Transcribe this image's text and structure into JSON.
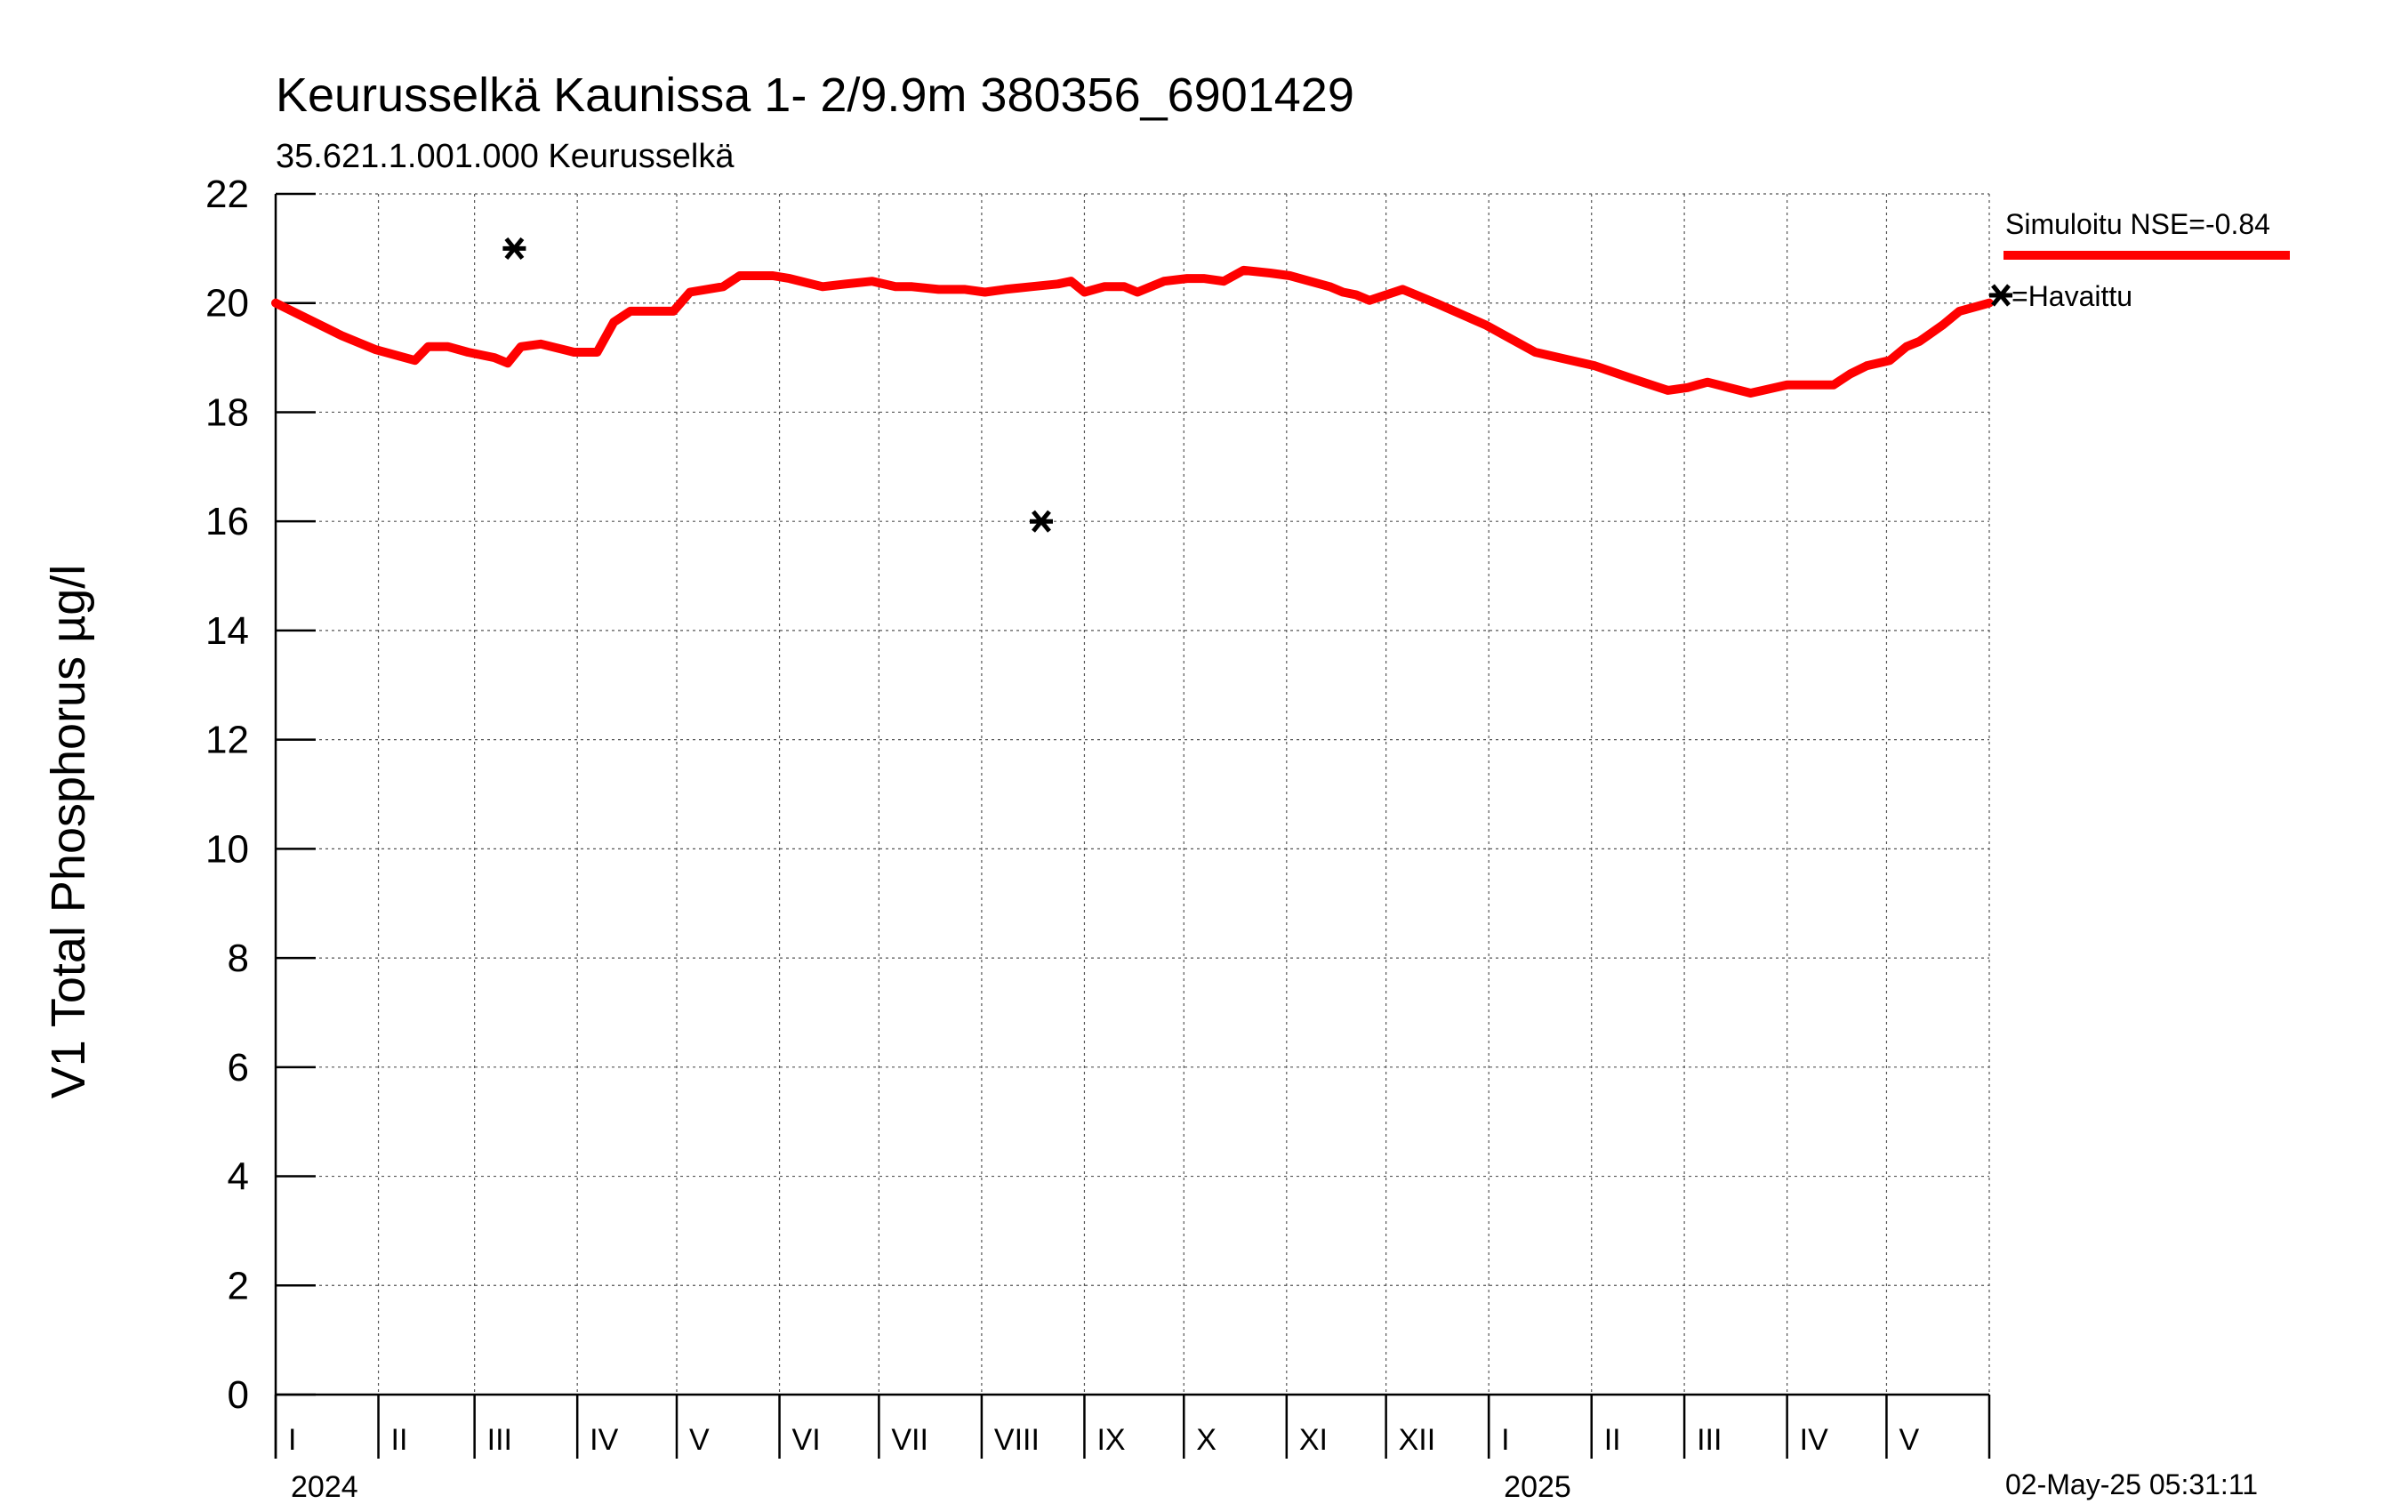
{
  "chart_data": {
    "type": "line",
    "title": "Keurusselkä Kaunissa 1- 2/9.9m  380356_6901429",
    "subtitle": "35.621.1.001.000 Keurusselkä",
    "ylabel": "V1 Total Phosphorus µg/l",
    "xlabel": "",
    "ylim": [
      0,
      22
    ],
    "y_ticks": [
      0,
      2,
      4,
      6,
      8,
      10,
      12,
      14,
      16,
      18,
      20,
      22
    ],
    "x_range_days": [
      0,
      517
    ],
    "grid": true,
    "months": [
      {
        "label": "I",
        "start": 0
      },
      {
        "label": "II",
        "start": 31
      },
      {
        "label": "III",
        "start": 60
      },
      {
        "label": "IV",
        "start": 91
      },
      {
        "label": "V",
        "start": 121
      },
      {
        "label": "VI",
        "start": 152
      },
      {
        "label": "VII",
        "start": 182
      },
      {
        "label": "VIII",
        "start": 213
      },
      {
        "label": "IX",
        "start": 244
      },
      {
        "label": "X",
        "start": 274
      },
      {
        "label": "XI",
        "start": 305
      },
      {
        "label": "XII",
        "start": 335
      },
      {
        "label": "I",
        "start": 366
      },
      {
        "label": "II",
        "start": 397
      },
      {
        "label": "III",
        "start": 425
      },
      {
        "label": "IV",
        "start": 456
      },
      {
        "label": "V",
        "start": 486
      }
    ],
    "years": [
      {
        "label": "2024",
        "start": 0
      },
      {
        "label": "2025",
        "start": 366
      }
    ],
    "series": [
      {
        "name": "Simuloitu NSE=-0.84",
        "color": "#ff0000",
        "kind": "line",
        "x": [
          0,
          10,
          20,
          30,
          42,
          46,
          52,
          58,
          66,
          70,
          74,
          80,
          90,
          97,
          102,
          107,
          115,
          120,
          125,
          135,
          140,
          150,
          155,
          165,
          172,
          180,
          187,
          192,
          200,
          208,
          214,
          220,
          228,
          236,
          240,
          244,
          250,
          256,
          260,
          268,
          275,
          280,
          286,
          292,
          300,
          306,
          312,
          318,
          322,
          326,
          330,
          340,
          350,
          365,
          380,
          398,
          410,
          420,
          426,
          432,
          445,
          456,
          462,
          470,
          475,
          480,
          487,
          492,
          496,
          503,
          508,
          514,
          517
        ],
        "y": [
          20.0,
          19.7,
          19.4,
          19.15,
          18.95,
          19.2,
          19.2,
          19.1,
          19.0,
          18.9,
          19.2,
          19.25,
          19.1,
          19.1,
          19.65,
          19.85,
          19.85,
          19.85,
          20.2,
          20.3,
          20.5,
          20.5,
          20.45,
          20.3,
          20.35,
          20.4,
          20.3,
          20.3,
          20.25,
          20.25,
          20.2,
          20.25,
          20.3,
          20.35,
          20.4,
          20.2,
          20.3,
          20.3,
          20.2,
          20.4,
          20.45,
          20.45,
          20.4,
          20.6,
          20.55,
          20.5,
          20.4,
          20.3,
          20.2,
          20.15,
          20.05,
          20.25,
          20.0,
          19.6,
          19.1,
          18.85,
          18.6,
          18.4,
          18.45,
          18.55,
          18.35,
          18.5,
          18.5,
          18.5,
          18.7,
          18.85,
          18.95,
          19.2,
          19.3,
          19.6,
          19.85,
          19.95,
          20.0
        ]
      },
      {
        "name": "=Havaittu",
        "color": "#000000",
        "kind": "markers",
        "x": [
          72,
          231
        ],
        "y": [
          21.0,
          16.0
        ]
      }
    ],
    "legend_position": "top-right",
    "timestamp": "02-May-25 05:31:11"
  }
}
